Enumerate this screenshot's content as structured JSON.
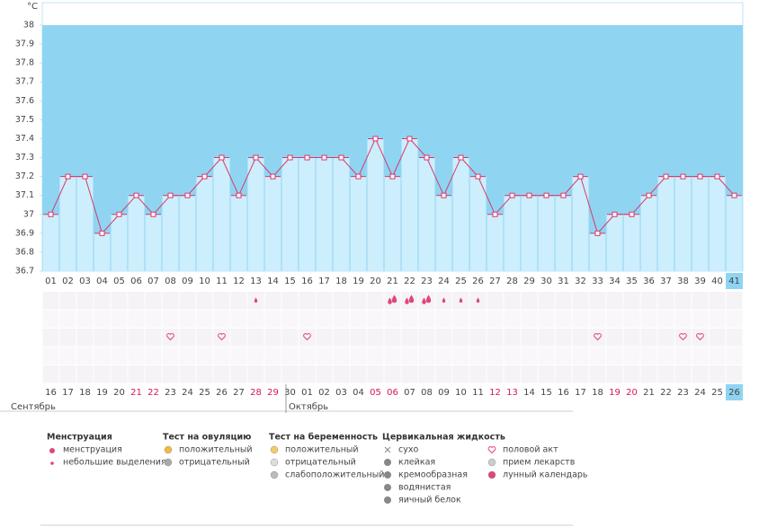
{
  "chart_data": {
    "type": "line",
    "y_unit": "°C",
    "categories": [
      "01",
      "02",
      "03",
      "04",
      "05",
      "06",
      "07",
      "08",
      "09",
      "10",
      "11",
      "12",
      "13",
      "14",
      "15",
      "16",
      "17",
      "18",
      "19",
      "20",
      "21",
      "22",
      "23",
      "24",
      "25",
      "26",
      "27",
      "28",
      "29",
      "30",
      "31",
      "32",
      "33",
      "34",
      "35",
      "36",
      "37",
      "38",
      "39",
      "40",
      "41"
    ],
    "values": [
      37.0,
      37.2,
      37.2,
      36.9,
      37.0,
      37.1,
      37.0,
      37.1,
      37.1,
      37.2,
      37.3,
      37.1,
      37.3,
      37.2,
      37.3,
      37.3,
      37.3,
      37.3,
      37.2,
      37.4,
      37.2,
      37.4,
      37.3,
      37.1,
      37.3,
      37.2,
      37.0,
      37.1,
      37.1,
      37.1,
      37.1,
      37.2,
      36.9,
      37.0,
      37.0,
      37.1,
      37.2,
      37.2,
      37.2,
      37.2,
      37.1
    ],
    "color": "#d9386d",
    "ylim": [
      36.7,
      38
    ],
    "yticks": [
      36.7,
      36.8,
      36.9,
      37,
      37.1,
      37.2,
      37.3,
      37.4,
      37.5,
      37.6,
      37.7,
      37.8,
      37.9,
      38
    ],
    "highlight_day": "41",
    "dates": [
      "16",
      "17",
      "18",
      "19",
      "20",
      "21",
      "22",
      "23",
      "24",
      "25",
      "26",
      "27",
      "28",
      "29",
      "30",
      "01",
      "02",
      "03",
      "04",
      "05",
      "06",
      "07",
      "08",
      "09",
      "10",
      "11",
      "12",
      "13",
      "14",
      "15",
      "16",
      "17",
      "18",
      "19",
      "20",
      "21",
      "22",
      "23",
      "24",
      "25",
      "26"
    ],
    "weekend_date_indexes": [
      5,
      6,
      12,
      13,
      19,
      20,
      26,
      27,
      33,
      34
    ],
    "months": [
      {
        "label": "Сентябрь",
        "start_index": 0
      },
      {
        "label": "Октябрь",
        "start_index": 15
      }
    ],
    "menstruation_heavy_days": [
      21,
      22,
      23
    ],
    "menstruation_light_days": [
      13,
      24,
      25,
      26
    ],
    "intercourse_days": [
      8,
      11,
      16,
      33,
      38,
      39
    ],
    "legend": [
      {
        "title": "Менструация",
        "items": [
          "менструация",
          "небольшие выделения"
        ]
      },
      {
        "title": "Тест на овуляцию",
        "items": [
          "положительный",
          "отрицательный"
        ]
      },
      {
        "title": "Тест на беременность",
        "items": [
          "положительный",
          "отрицательный",
          "слабоположительный"
        ]
      },
      {
        "title": "Цервикальная жидкость",
        "items": [
          "сухо",
          "клейкая",
          "кремообразная",
          "водянистая",
          "яичный белок"
        ]
      },
      {
        "items": [
          "половой акт",
          "прием лекарств",
          "лунный календарь"
        ]
      }
    ]
  }
}
